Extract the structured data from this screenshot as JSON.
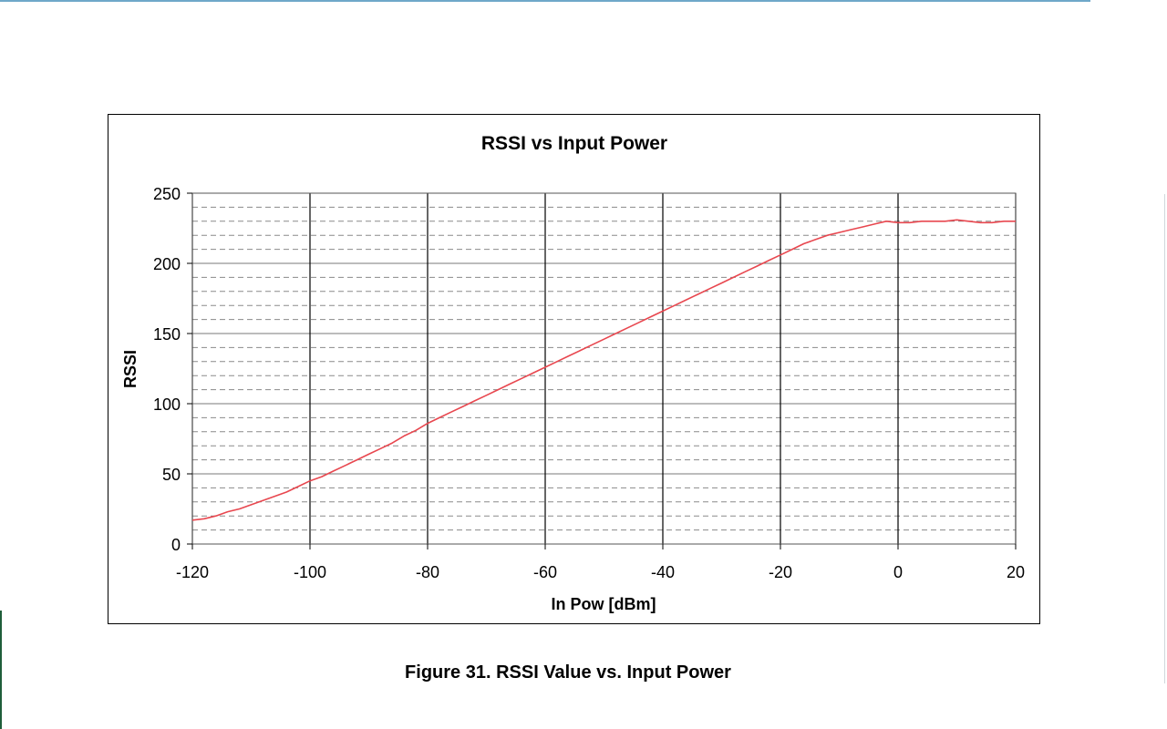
{
  "caption": "Figure 31. RSSI Value vs. Input Power",
  "chart_data": {
    "type": "line",
    "title": "RSSI vs Input Power",
    "xlabel": "In Pow [dBm]",
    "ylabel": "RSSI",
    "xlim": [
      -120,
      20
    ],
    "ylim": [
      0,
      250
    ],
    "xticks": [
      -120,
      -100,
      -80,
      -60,
      -40,
      -20,
      0,
      20
    ],
    "yticks": [
      0,
      50,
      100,
      150,
      200,
      250
    ],
    "grid": {
      "major_x": true,
      "major_y": true,
      "minor_y_dashed": true,
      "minor_y_step": 10
    },
    "line_color": "#e8474f",
    "series": [
      {
        "x": [
          -120,
          -118,
          -116,
          -114,
          -112,
          -110,
          -108,
          -106,
          -104,
          -102,
          -100,
          -98,
          -96,
          -94,
          -92,
          -90,
          -88,
          -86,
          -84,
          -82,
          -80,
          -78,
          -76,
          -74,
          -72,
          -70,
          -68,
          -66,
          -64,
          -62,
          -60,
          -58,
          -56,
          -54,
          -52,
          -50,
          -48,
          -46,
          -44,
          -42,
          -40,
          -38,
          -36,
          -34,
          -32,
          -30,
          -28,
          -26,
          -24,
          -22,
          -20,
          -18,
          -16,
          -14,
          -12,
          -10,
          -8,
          -6,
          -4,
          -2,
          0,
          2,
          4,
          6,
          8,
          10,
          12,
          14,
          16,
          18,
          20
        ],
        "values": [
          17,
          18,
          20,
          23,
          25,
          28,
          31,
          34,
          37,
          41,
          45,
          48,
          52,
          56,
          60,
          64,
          68,
          72,
          77,
          81,
          86,
          90,
          94,
          98,
          102,
          106,
          110,
          114,
          118,
          122,
          126,
          130,
          134,
          138,
          142,
          146,
          150,
          154,
          158,
          162,
          166,
          170,
          174,
          178,
          182,
          186,
          190,
          194,
          198,
          202,
          206,
          210,
          214,
          217,
          220,
          222,
          224,
          226,
          228,
          230,
          229,
          229,
          230,
          230,
          230,
          231,
          230,
          229,
          229,
          230,
          230
        ]
      }
    ]
  }
}
